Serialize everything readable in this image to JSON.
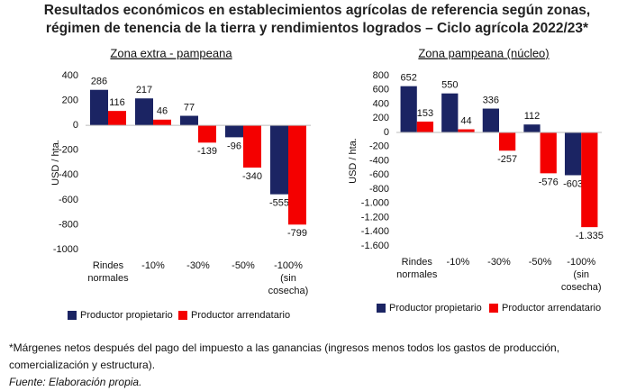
{
  "title": [
    "Resultados económicos en establecimientos agrícolas de referencia según zonas,",
    "régimen de tenencia de la tierra y rendimientos logrados – Ciclo agrícola 2022/23*"
  ],
  "footnote": [
    "*Márgenes netos después del pago del impuesto a las ganancias (ingresos menos todos los gastos de producción,",
    "comercialización y estructura)."
  ],
  "source": "Fuente: Elaboración propia.",
  "chart_data": [
    {
      "type": "bar",
      "title": "Zona extra - pampeana",
      "y_label": "USD / hta.",
      "categories": [
        [
          "Rindes",
          "normales"
        ],
        [
          "-10%"
        ],
        [
          "-30%"
        ],
        [
          "-50%"
        ],
        [
          "-100%",
          "(sin",
          "cosecha)"
        ]
      ],
      "series": [
        {
          "name": "Productor propietario",
          "color": "#1b2463",
          "values": [
            286,
            217,
            77,
            -96,
            -555
          ]
        },
        {
          "name": "Productor arrendatario",
          "color": "#f40000",
          "values": [
            116,
            46,
            -139,
            -340,
            -799
          ]
        }
      ],
      "ylim": [
        -1000,
        400
      ],
      "yticks": [
        -1000,
        -800,
        -600,
        -400,
        -200,
        0,
        200,
        400
      ]
    },
    {
      "type": "bar",
      "title": "Zona pampeana (núcleo)",
      "y_label": "USD / hta.",
      "categories": [
        [
          "Rindes",
          "normales"
        ],
        [
          "-10%"
        ],
        [
          "-30%"
        ],
        [
          "-50%"
        ],
        [
          "-100%",
          "(sin",
          "cosecha)"
        ]
      ],
      "series": [
        {
          "name": "Productor propietario",
          "color": "#1b2463",
          "values": [
            652,
            550,
            336,
            112,
            -603
          ]
        },
        {
          "name": "Productor arrendatario",
          "color": "#f40000",
          "values": [
            153,
            44,
            -257,
            -576,
            -1335
          ],
          "value_labels": [
            "153",
            "44",
            "-257",
            "-576",
            "-1.335"
          ]
        }
      ],
      "ylim": [
        -1600,
        800
      ],
      "yticks": [
        {
          "value": -1600,
          "label": "-1.600"
        },
        {
          "value": -1400,
          "label": "-1.400"
        },
        {
          "value": -1200,
          "label": "-1.200"
        },
        {
          "value": -1000,
          "label": "-1.000"
        },
        -800,
        -600,
        -400,
        -200,
        0,
        200,
        400,
        600,
        800
      ]
    }
  ]
}
